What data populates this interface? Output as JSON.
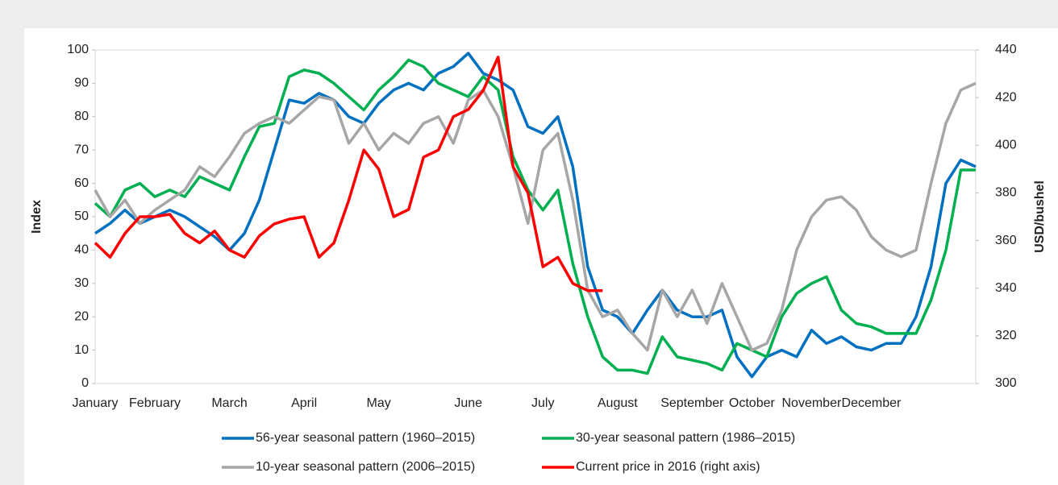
{
  "chart_data": {
    "type": "line",
    "y_label": "Index",
    "y2_label": "USD/bushel",
    "categories": [
      "January",
      null,
      null,
      null,
      "February",
      null,
      null,
      null,
      null,
      "March",
      null,
      null,
      null,
      null,
      "April",
      null,
      null,
      null,
      null,
      "May",
      null,
      null,
      null,
      null,
      null,
      "June",
      null,
      null,
      null,
      null,
      "July",
      null,
      null,
      null,
      null,
      "August",
      null,
      null,
      null,
      null,
      "September",
      null,
      null,
      null,
      "October",
      null,
      null,
      null,
      "November",
      null,
      null,
      null,
      "December",
      null,
      null,
      null,
      null,
      null,
      null,
      null
    ],
    "ylim": [
      0,
      100
    ],
    "yticks": [
      0,
      10,
      20,
      30,
      40,
      50,
      60,
      70,
      80,
      90,
      100
    ],
    "y2lim": [
      300,
      440
    ],
    "y2ticks": [
      300,
      320,
      340,
      360,
      380,
      400,
      420,
      440
    ],
    "legend": "bottom",
    "series": [
      {
        "name": "56-year seasonal pattern (1960–2015)",
        "color": "#0070c0",
        "values": [
          45,
          48,
          52,
          48,
          50,
          52,
          50,
          47,
          44,
          40,
          45,
          55,
          70,
          85,
          84,
          87,
          85,
          80,
          78,
          84,
          88,
          90,
          88,
          93,
          95,
          99,
          93,
          91,
          88,
          77,
          75,
          80,
          65,
          35,
          22,
          20,
          15,
          22,
          28,
          22,
          20,
          20,
          22,
          8,
          2,
          8,
          10,
          8,
          16,
          12,
          14,
          11,
          10,
          12,
          12,
          20,
          35,
          60,
          67,
          65
        ]
      },
      {
        "name": "30-year seasonal pattern (1986–2015)",
        "color": "#00b050",
        "values": [
          54,
          50,
          58,
          60,
          56,
          58,
          56,
          62,
          60,
          58,
          68,
          77,
          78,
          92,
          94,
          93,
          90,
          86,
          82,
          88,
          92,
          97,
          95,
          90,
          88,
          86,
          92,
          88,
          68,
          58,
          52,
          58,
          36,
          20,
          8,
          4,
          4,
          3,
          14,
          8,
          7,
          6,
          4,
          12,
          10,
          8,
          20,
          27,
          30,
          32,
          22,
          18,
          17,
          15,
          15,
          15,
          25,
          40,
          64,
          64
        ]
      },
      {
        "name": "10-year seasonal pattern (2006–2015)",
        "color": "#a6a6a6",
        "values": [
          58,
          50,
          55,
          48,
          52,
          55,
          58,
          65,
          62,
          68,
          75,
          78,
          80,
          78,
          82,
          86,
          85,
          72,
          78,
          70,
          75,
          72,
          78,
          80,
          72,
          85,
          88,
          80,
          65,
          48,
          70,
          75,
          55,
          28,
          20,
          22,
          15,
          10,
          28,
          20,
          28,
          18,
          30,
          20,
          10,
          12,
          22,
          40,
          50,
          55,
          56,
          52,
          44,
          40,
          38,
          40,
          60,
          78,
          88,
          90
        ]
      },
      {
        "name": "Current price in 2016 (right axis)",
        "color": "#ff0000",
        "axis": "y2",
        "values": [
          359,
          353,
          363,
          370,
          370,
          371,
          363,
          359,
          364,
          356,
          353,
          362,
          367,
          369,
          370,
          353,
          359,
          377,
          398,
          390,
          370,
          373,
          395,
          398,
          412,
          415,
          423,
          437,
          391,
          380,
          349,
          353,
          342,
          339,
          339,
          null,
          null,
          null,
          null,
          null,
          null,
          null,
          null,
          null,
          null,
          null,
          null,
          null,
          null,
          null,
          null,
          null,
          null,
          null,
          null,
          null,
          null,
          null,
          null,
          null
        ]
      }
    ]
  }
}
